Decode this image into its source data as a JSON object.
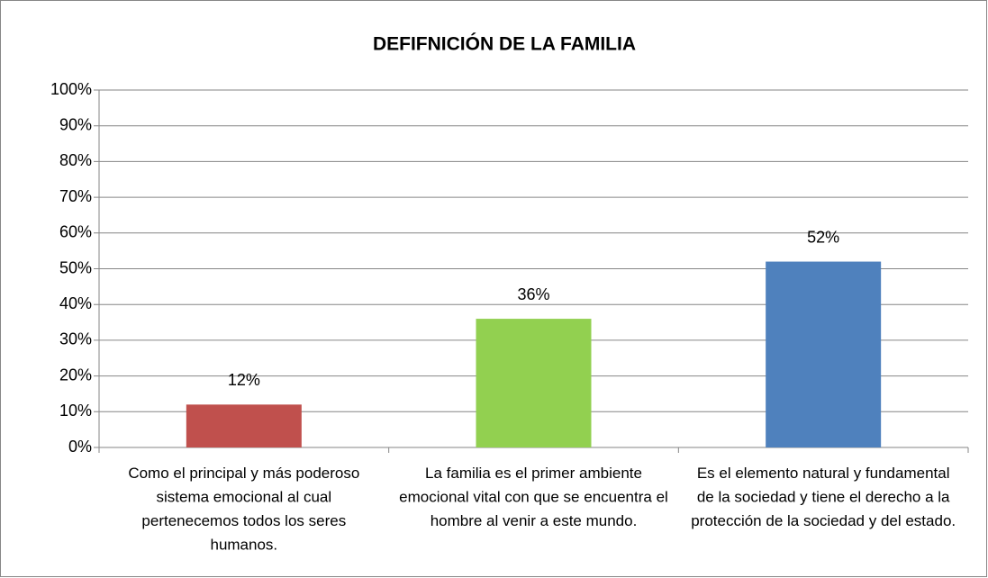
{
  "chart_data": {
    "type": "bar",
    "title": "DEFIFNICIÓN DE LA FAMILIA",
    "categories": [
      "Como el principal y más poderoso sistema emocional al cual pertenecemos todos los seres humanos.",
      "La familia es el primer ambiente emocional vital con que se encuentra el hombre al venir a este mundo.",
      "Es el elemento natural y fundamental de la sociedad y tiene el derecho a la protección de la sociedad y del estado."
    ],
    "values": [
      12,
      36,
      52
    ],
    "value_labels": [
      "12%",
      "36%",
      "52%"
    ],
    "colors": [
      "#c0504d",
      "#92d050",
      "#4f81bd"
    ],
    "ylim": [
      0,
      100
    ],
    "yticks": [
      {
        "value": 0,
        "label": "0%"
      },
      {
        "value": 10,
        "label": "10%"
      },
      {
        "value": 20,
        "label": "20%"
      },
      {
        "value": 30,
        "label": "30%"
      },
      {
        "value": 40,
        "label": "40%"
      },
      {
        "value": 50,
        "label": "50%"
      },
      {
        "value": 60,
        "label": "60%"
      },
      {
        "value": 70,
        "label": "70%"
      },
      {
        "value": 80,
        "label": "80%"
      },
      {
        "value": 90,
        "label": "90%"
      },
      {
        "value": 100,
        "label": "100%"
      }
    ],
    "grid": true
  }
}
